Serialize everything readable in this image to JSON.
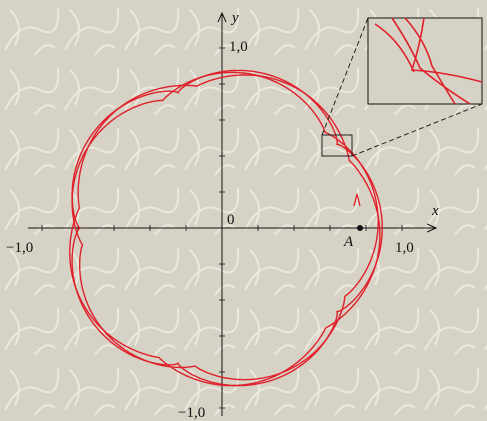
{
  "axes": {
    "x_label": "x",
    "y_label": "y",
    "origin_label": "0",
    "x_pos_label": "1,0",
    "x_neg_label": "−1,0",
    "y_pos_label": "1,0",
    "y_neg_label": "−1,0"
  },
  "point_label": "A"
}
